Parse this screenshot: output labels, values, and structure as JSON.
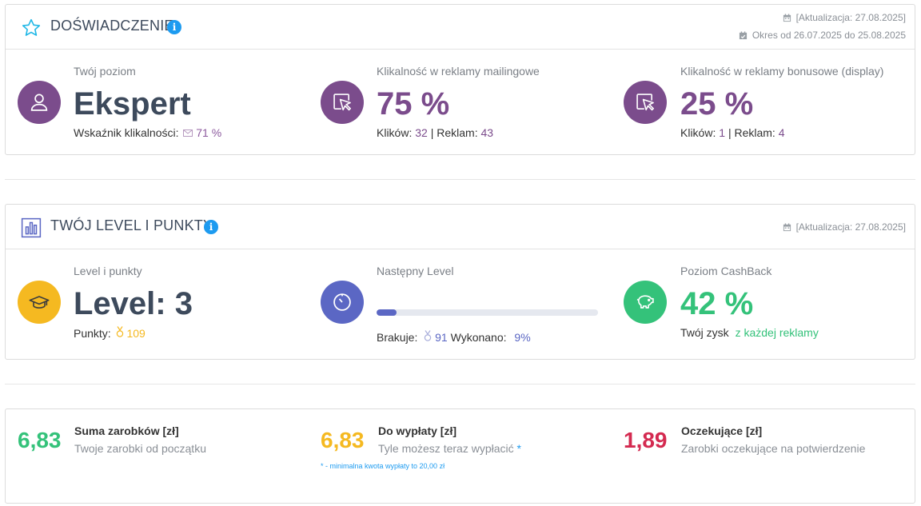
{
  "colors": {
    "purple": "#7b4c8c",
    "purple_text": "#7b4c8c",
    "indigo": "#5b67c4",
    "yellow": "#f5b921",
    "green": "#34c27a",
    "red": "#d42a50",
    "info_blue": "#1d9bf0"
  },
  "experience": {
    "title": "DOŚWIADCZENIE",
    "updated": "[Aktualizacja: 27.08.2025]",
    "period": "Okres od 26.07.2025 do 25.08.2025",
    "level": {
      "label": "Twój poziom",
      "value": "Ekspert",
      "indicator_label": "Wskaźnik klikalności:",
      "indicator_value": "71 %"
    },
    "mailing": {
      "label": "Klikalność w reklamy mailingowe",
      "value": "75 %",
      "clicks_label": "Klików:",
      "clicks": "32",
      "sep": "|",
      "ads_label": "Reklam:",
      "ads": "43"
    },
    "bonus": {
      "label": "Klikalność w reklamy bonusowe (display)",
      "value": "25 %",
      "clicks_label": "Klików:",
      "clicks": "1",
      "sep": "|",
      "ads_label": "Reklam:",
      "ads": "4"
    }
  },
  "level_points": {
    "title": "TWÓJ LEVEL I PUNKTY",
    "updated": "[Aktualizacja: 27.08.2025]",
    "level": {
      "label": "Level i punkty",
      "value": "Level: 3",
      "points_label": "Punkty:",
      "points": "109"
    },
    "next": {
      "label": "Następny Level",
      "progress_fraction": 0.09,
      "missing_label": "Brakuje:",
      "missing": "91",
      "done_label": "Wykonano:",
      "done": "9%"
    },
    "cashback": {
      "label": "Poziom CashBack",
      "value": "42 %",
      "profit_label": "Twój zysk",
      "profit_suffix": "z każdej reklamy"
    }
  },
  "summary": {
    "total": {
      "value": "6,83",
      "title": "Suma zarobków [zł]",
      "desc": "Twoje zarobki od początku"
    },
    "payout": {
      "value": "6,83",
      "title": "Do wypłaty [zł]",
      "desc": "Tyle możesz teraz wypłacić",
      "asterisk": "*",
      "footnote": "* - minimalna kwota wypłaty to 20,00 zł"
    },
    "pending": {
      "value": "1,89",
      "title": "Oczekujące [zł]",
      "desc": "Zarobki oczekujące na potwierdzenie"
    }
  },
  "icons": {
    "experience_header": "star-icon",
    "level_header": "bar-chart-icon",
    "info": "info-icon",
    "calendar": "calendar-icon",
    "user": "user-icon",
    "cursor": "cursor-click-icon",
    "graduation": "graduation-cap-icon",
    "timer": "timer-icon",
    "piggy": "piggy-bank-icon",
    "medal": "medal-icon",
    "envelope": "envelope-icon"
  }
}
